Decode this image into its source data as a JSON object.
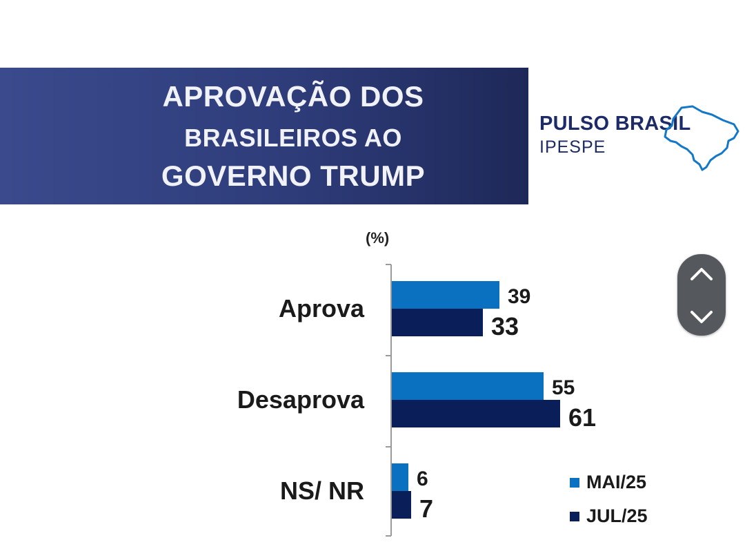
{
  "title": {
    "line1": "APROVAÇÃO DOS",
    "line2": "BRASILEIROS AO",
    "line3": "GOVERNO TRUMP"
  },
  "logo": {
    "brand": "PULSO BRASIL",
    "sub": "IPESPE",
    "icon": "brazil-map-outline-icon"
  },
  "colors": {
    "banner": "#2e3c7a",
    "series_mai": "#0a70c0",
    "series_jul": "#0a1e5a",
    "brand": "#1d2b66"
  },
  "scroll_widget": {
    "up_icon": "chevron-up-icon",
    "down_icon": "chevron-down-icon"
  },
  "chart_data": {
    "type": "bar",
    "orientation": "horizontal",
    "unit_label": "(%)",
    "categories": [
      "Aprova",
      "Desaprova",
      "NS/ NR"
    ],
    "series": [
      {
        "name": "MAI/25",
        "values": [
          39,
          55,
          6
        ],
        "color": "#0a70c0"
      },
      {
        "name": "JUL/25",
        "values": [
          33,
          61,
          7
        ],
        "color": "#0a1e5a"
      }
    ],
    "legend_position": "bottom-right",
    "grid": false
  }
}
